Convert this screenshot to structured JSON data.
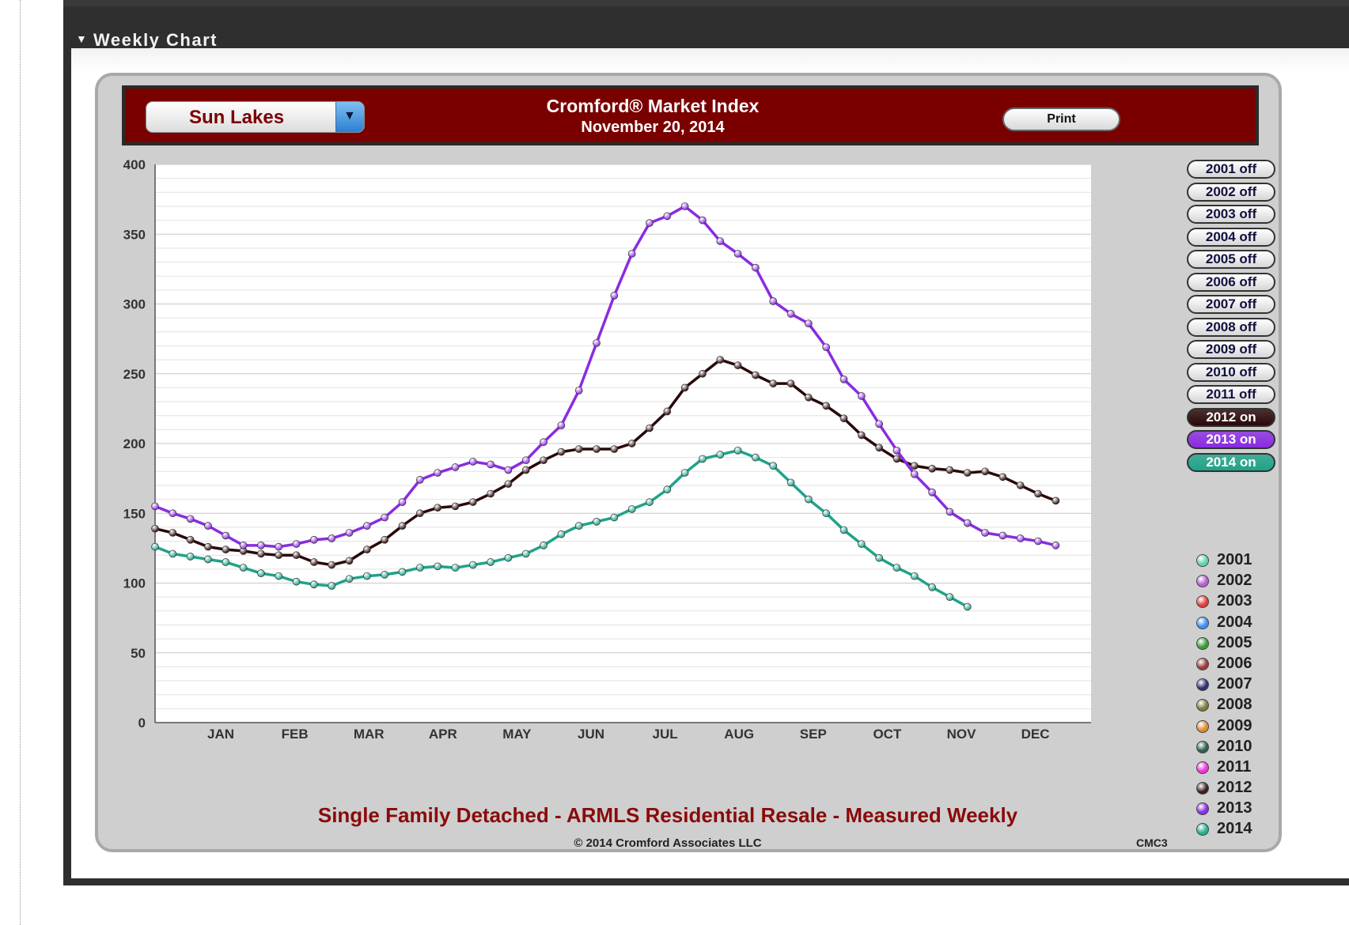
{
  "panel": {
    "title": "Weekly Chart"
  },
  "header": {
    "region": "Sun Lakes",
    "title": "Cromford® Market Index",
    "date": "November 20, 2014",
    "print_label": "Print"
  },
  "footer": {
    "subtitle": "Single Family Detached - ARMLS Residential Resale - Measured Weekly",
    "copyright": "© 2014 Cromford Associates LLC",
    "code": "CMC3"
  },
  "year_toggles": [
    {
      "label": "2001 off",
      "state": "off",
      "color": ""
    },
    {
      "label": "2002 off",
      "state": "off",
      "color": ""
    },
    {
      "label": "2003 off",
      "state": "off",
      "color": ""
    },
    {
      "label": "2004 off",
      "state": "off",
      "color": ""
    },
    {
      "label": "2005 off",
      "state": "off",
      "color": ""
    },
    {
      "label": "2006 off",
      "state": "off",
      "color": ""
    },
    {
      "label": "2007 off",
      "state": "off",
      "color": ""
    },
    {
      "label": "2008 off",
      "state": "off",
      "color": ""
    },
    {
      "label": "2009 off",
      "state": "off",
      "color": ""
    },
    {
      "label": "2010 off",
      "state": "off",
      "color": ""
    },
    {
      "label": "2011 off",
      "state": "off",
      "color": ""
    },
    {
      "label": "2012 on",
      "state": "on",
      "color": "#2a0808"
    },
    {
      "label": "2013 on",
      "state": "on",
      "color": "#8a2be2"
    },
    {
      "label": "2014 on",
      "state": "on",
      "color": "#1fa389"
    }
  ],
  "legend": [
    {
      "year": "2001",
      "color": "#5fd4a8"
    },
    {
      "year": "2002",
      "color": "#b65fcf"
    },
    {
      "year": "2003",
      "color": "#e23b3b"
    },
    {
      "year": "2004",
      "color": "#3d8ff0"
    },
    {
      "year": "2005",
      "color": "#3a9a3a"
    },
    {
      "year": "2006",
      "color": "#9a3a3a"
    },
    {
      "year": "2007",
      "color": "#303070"
    },
    {
      "year": "2008",
      "color": "#7a7a40"
    },
    {
      "year": "2009",
      "color": "#e08a30"
    },
    {
      "year": "2010",
      "color": "#2f5f4f"
    },
    {
      "year": "2011",
      "color": "#ee33dd"
    },
    {
      "year": "2012",
      "color": "#3a2020"
    },
    {
      "year": "2013",
      "color": "#8a2be2"
    },
    {
      "year": "2014",
      "color": "#28b090"
    }
  ],
  "chart_data": {
    "type": "line",
    "title": "Cromford® Market Index",
    "subtitle": "Single Family Detached - ARMLS Residential Resale - Measured Weekly",
    "xlabel": "",
    "ylabel": "",
    "ylim": [
      0,
      400
    ],
    "yticks": [
      0,
      50,
      100,
      150,
      200,
      250,
      300,
      350,
      400
    ],
    "month_labels": [
      "JAN",
      "FEB",
      "MAR",
      "APR",
      "MAY",
      "JUN",
      "JUL",
      "AUG",
      "SEP",
      "OCT",
      "NOV",
      "DEC"
    ],
    "x_unit": "week of year",
    "xlim": [
      1,
      54
    ],
    "grid": true,
    "legend_position": "right",
    "series": [
      {
        "name": "2012",
        "color": "#2a0808",
        "values": [
          139,
          136,
          131,
          126,
          124,
          123,
          121,
          120,
          120,
          115,
          113,
          116,
          124,
          131,
          141,
          150,
          154,
          155,
          158,
          164,
          171,
          181,
          188,
          194,
          196,
          196,
          196,
          200,
          211,
          223,
          240,
          250,
          260,
          256,
          249,
          243,
          243,
          233,
          227,
          218,
          206,
          197,
          189,
          184,
          182,
          181,
          179,
          180,
          176,
          170,
          164,
          159
        ]
      },
      {
        "name": "2013",
        "color": "#8a2be2",
        "values": [
          155,
          150,
          146,
          141,
          134,
          127,
          127,
          126,
          128,
          131,
          132,
          136,
          141,
          147,
          158,
          174,
          179,
          183,
          187,
          185,
          181,
          188,
          201,
          213,
          238,
          272,
          306,
          336,
          358,
          363,
          370,
          360,
          345,
          336,
          326,
          302,
          293,
          286,
          269,
          246,
          234,
          214,
          195,
          178,
          165,
          151,
          143,
          136,
          134,
          132,
          130,
          127
        ]
      },
      {
        "name": "2014",
        "color": "#1fa389",
        "values": [
          126,
          121,
          119,
          117,
          115,
          111,
          107,
          105,
          101,
          99,
          98,
          103,
          105,
          106,
          108,
          111,
          112,
          111,
          113,
          115,
          118,
          121,
          127,
          135,
          141,
          144,
          147,
          153,
          158,
          167,
          179,
          189,
          192,
          195,
          190,
          184,
          172,
          160,
          150,
          138,
          128,
          118,
          111,
          105,
          97,
          90,
          83
        ]
      }
    ]
  }
}
